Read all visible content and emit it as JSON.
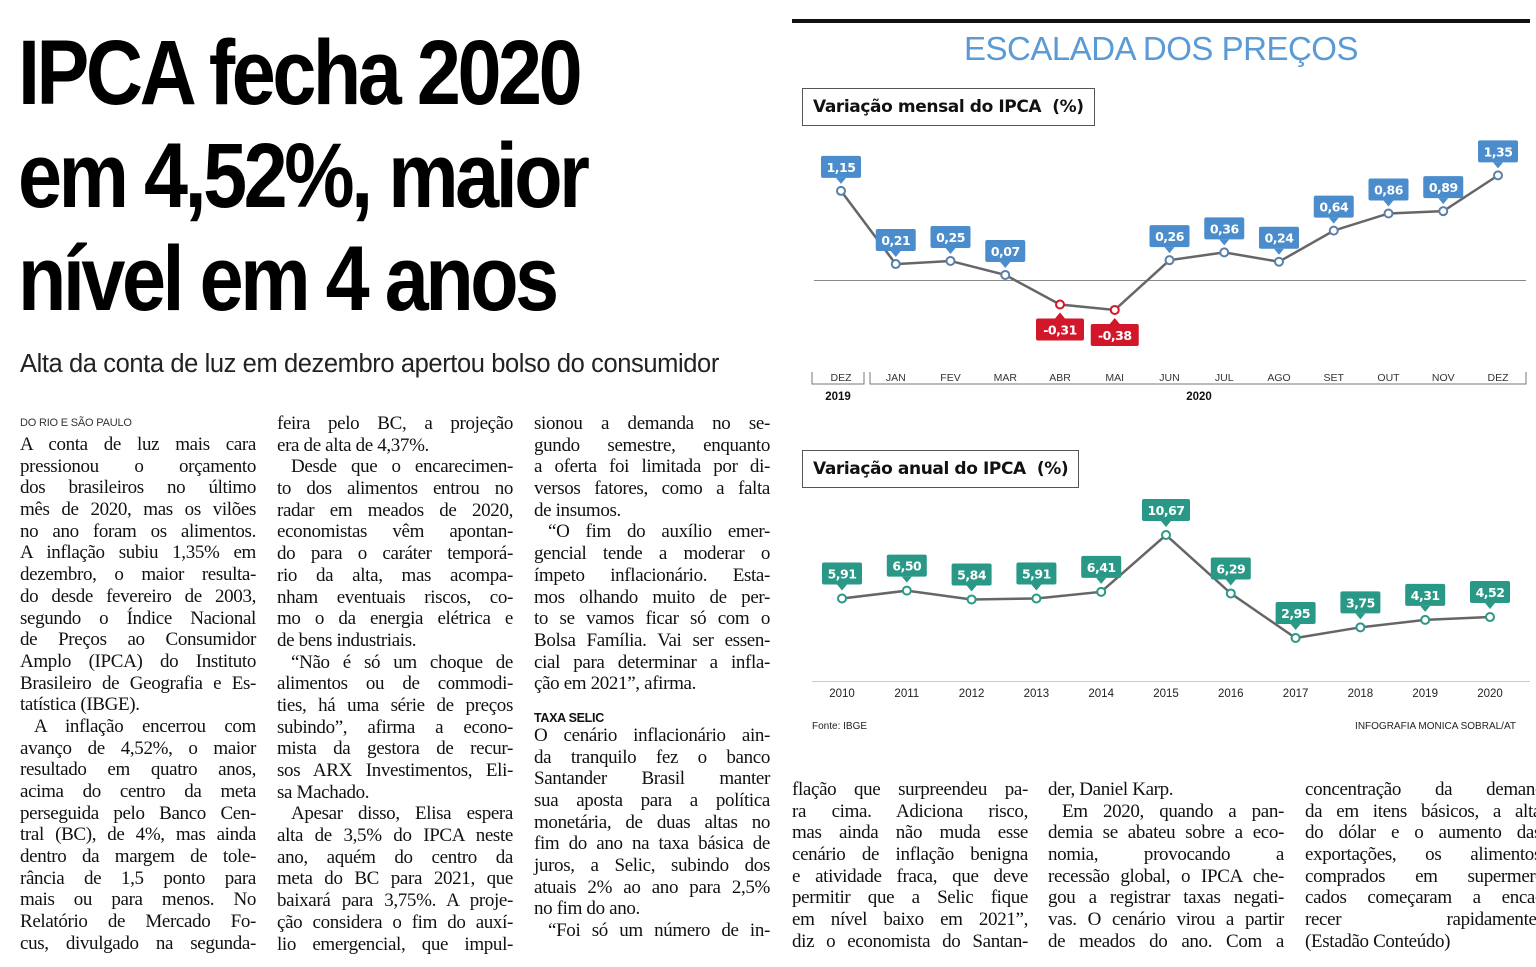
{
  "headline": {
    "lines": [
      "IPCA fecha 2020",
      "em 4,52%, maior",
      "nível em 4 anos"
    ],
    "subtitle": "Alta da conta de luz em dezembro apertou bolso do consumidor"
  },
  "dateline": "DO RIO E SÃO PAULO",
  "body": {
    "columns": [
      {
        "blocks": [
          {
            "indent": false,
            "lines": [
              "A conta de luz mais cara",
              "pressionou o orçamento",
              "dos brasileiros no último",
              "mês de 2020, mas os vilões",
              "no ano foram os alimentos.",
              "A inflação subiu 1,35% em",
              "dezembro, o maior resulta-",
              "do desde fevereiro de 2003,",
              "segundo o Índice Nacional",
              "de Preços ao Consumidor",
              "Amplo (IPCA) do Instituto",
              "Brasileiro de Geografia e Es-",
              "tatística (IBGE)."
            ]
          },
          {
            "indent": true,
            "cont": true,
            "lines": [
              "A inflação encerrou com",
              "avanço de 4,52%, o maior",
              "resultado em quatro anos,",
              "acima do centro da meta",
              "perseguida pelo Banco Cen-",
              "tral (BC), de 4%, mas ainda",
              "dentro da margem de tole-",
              "rância de 1,5 ponto para",
              "mais ou para menos. No",
              "Relatório de Mercado Fo-",
              "cus, divulgado na segunda-"
            ]
          }
        ]
      },
      {
        "blocks": [
          {
            "indent": false,
            "lines": [
              "feira pelo BC, a projeção",
              "era de alta de 4,37%."
            ]
          },
          {
            "indent": true,
            "lines": [
              "Desde que o encarecimen-",
              "to dos alimentos entrou no",
              "radar em meados de 2020,",
              "economistas vêm apontan-",
              "do para o caráter temporá-",
              "rio da alta, mas acompa-",
              "nham eventuais riscos, co-",
              "mo o da energia elétrica e",
              "de bens industriais."
            ]
          },
          {
            "indent": true,
            "lines": [
              "“Não é só um choque de",
              "alimentos ou de commodi-",
              "ties, há uma série de preços",
              "subindo”, afirma a econo-",
              "mista da gestora de recur-",
              "sos ARX Investimentos, Eli-",
              "sa Machado."
            ]
          },
          {
            "indent": true,
            "cont": true,
            "lines": [
              "Apesar disso, Elisa espera",
              "alta de 3,5% do IPCA neste",
              "ano, aquém do centro da",
              "meta do BC para 2021, que",
              "baixará para 3,75%. A proje-",
              "ção considera o fim do auxí-",
              "lio emergencial, que impul-"
            ]
          }
        ]
      },
      {
        "blocks": [
          {
            "indent": false,
            "lines": [
              "sionou a demanda no se-",
              "gundo semestre, enquanto",
              "a oferta foi limitada por di-",
              "versos fatores, como a falta",
              "de insumos."
            ]
          },
          {
            "indent": true,
            "lines": [
              "“O fim do auxílio emer-",
              "gencial tende a moderar o",
              "ímpeto inflacionário. Esta-",
              "mos olhando muito de per-",
              "to se vamos ficar só com o",
              "Bolsa Família. Vai ser essen-",
              "cial para determinar a infla-",
              "ção em 2021”, afirma."
            ]
          },
          {
            "subhead": "TAXA SELIC"
          },
          {
            "indent": false,
            "lines": [
              "O cenário inflacionário ain-",
              "da tranquilo fez o banco",
              "Santander Brasil manter",
              "sua aposta para a política",
              "monetária, de duas altas no",
              "fim do ano na taxa básica de",
              "juros, a Selic, subindo dos",
              "atuais 2% ao ano para 2,5%",
              "no fim do ano."
            ]
          },
          {
            "indent": true,
            "cont": true,
            "lines": [
              "“Foi só um número de in-"
            ]
          }
        ]
      },
      {
        "blocks": [
          {
            "indent": false,
            "cont": true,
            "lines": [
              "flação que surpreendeu pa-",
              "ra cima. Adiciona risco,",
              "mas ainda não muda esse",
              "cenário de inflação benigna",
              "e atividade fraca, que deve",
              "permitir que a Selic fique",
              "em nível baixo em 2021”,",
              "diz o economista do Santan-"
            ]
          }
        ]
      },
      {
        "blocks": [
          {
            "indent": false,
            "lines": [
              "der, Daniel Karp."
            ]
          },
          {
            "indent": true,
            "cont": true,
            "lines": [
              "Em 2020, quando a pan-",
              "demia se abateu sobre a eco-",
              "nomia, provocando a",
              "recessão global, o IPCA che-",
              "gou a registrar taxas negati-",
              "vas. O cenário virou a partir",
              "de meados do ano. Com a"
            ]
          }
        ]
      },
      {
        "blocks": [
          {
            "indent": false,
            "lines": [
              "concentração da deman-",
              "da em itens básicos, a alta",
              "do dólar e o aumento das",
              "exportações, os alimentos",
              "comprados em supermer-",
              "cados começaram a enca-",
              "recer rapidamente.",
              "(Estadão Conteúdo)"
            ]
          }
        ]
      }
    ]
  },
  "graphic": {
    "title": "ESCALADA DOS PREÇOS",
    "source": "Fonte: IBGE",
    "credit": "INFOGRAFIA MONICA SOBRAL/AT",
    "colors": {
      "title": "#5b9bd5",
      "positive": "#4a8ccc",
      "negative": "#d3172b",
      "annual": "#2a9887",
      "line": "#666666"
    }
  },
  "chart_data": [
    {
      "type": "line",
      "title": "Variação mensal do IPCA  (%)",
      "categories": [
        "DEZ",
        "JAN",
        "FEV",
        "MAR",
        "ABR",
        "MAI",
        "JUN",
        "JUL",
        "AGO",
        "SET",
        "OUT",
        "NOV",
        "DEZ"
      ],
      "groups": [
        {
          "label": "2019",
          "span": [
            0,
            0
          ]
        },
        {
          "label": "2020",
          "span": [
            1,
            12
          ]
        }
      ],
      "values": [
        1.15,
        0.21,
        0.25,
        0.07,
        -0.31,
        -0.38,
        0.26,
        0.36,
        0.24,
        0.64,
        0.86,
        0.89,
        1.35
      ],
      "data_labels": [
        "1,15",
        "0,21",
        "0,25",
        "0,07",
        "-0,31",
        "-0,38",
        "0,26",
        "0,36",
        "0,24",
        "0,64",
        "0,86",
        "0,89",
        "1,35"
      ],
      "zero_line": true
    },
    {
      "type": "line",
      "title": "Variação anual do IPCA  (%)",
      "categories": [
        "2010",
        "2011",
        "2012",
        "2013",
        "2014",
        "2015",
        "2016",
        "2017",
        "2018",
        "2019",
        "2020"
      ],
      "values": [
        5.91,
        6.5,
        5.84,
        5.91,
        6.41,
        10.67,
        6.29,
        2.95,
        3.75,
        4.31,
        4.52
      ],
      "data_labels": [
        "5,91",
        "6,50",
        "5,84",
        "5,91",
        "6,41",
        "10,67",
        "6,29",
        "2,95",
        "3,75",
        "4,31",
        "4,52"
      ]
    }
  ]
}
